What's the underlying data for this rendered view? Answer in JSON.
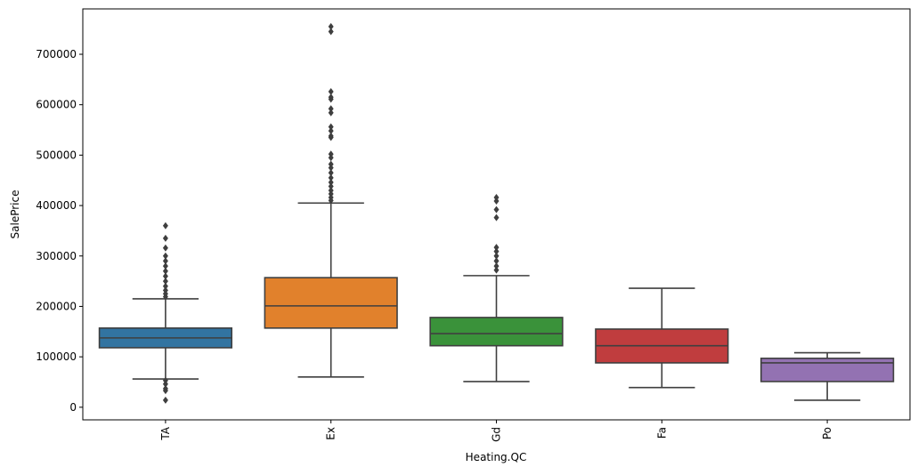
{
  "chart_data": {
    "type": "box",
    "title": "",
    "xlabel": "Heating.QC",
    "ylabel": "SalePrice",
    "ylim": [
      -25000,
      790000
    ],
    "yticks": [
      0,
      100000,
      200000,
      300000,
      400000,
      500000,
      600000,
      700000
    ],
    "ytick_labels": [
      "0",
      "100000",
      "200000",
      "300000",
      "400000",
      "500000",
      "600000",
      "700000"
    ],
    "categories": [
      "TA",
      "Ex",
      "Gd",
      "Fa",
      "Po"
    ],
    "grid": false,
    "line_color": "#3f3f3f",
    "boxes": [
      {
        "category": "TA",
        "color": "#3274a1",
        "whisker_low": 56000,
        "q1": 118000,
        "median": 137500,
        "q3": 157000,
        "whisker_high": 215000,
        "outliers": [
          360000,
          335000,
          316000,
          300000,
          290000,
          280000,
          270000,
          260000,
          250000,
          240000,
          232000,
          225000,
          219000,
          53000,
          46000,
          37000,
          33000,
          14000
        ]
      },
      {
        "category": "Ex",
        "color": "#e1812c",
        "whisker_low": 60000,
        "q1": 157000,
        "median": 201000,
        "q3": 257000,
        "whisker_high": 405000,
        "outliers": [
          755000,
          745000,
          626000,
          615000,
          611000,
          592000,
          584000,
          556000,
          548000,
          538000,
          535000,
          502000,
          495000,
          482000,
          475000,
          465000,
          455000,
          446000,
          438000,
          430000,
          423000,
          416000,
          410000
        ]
      },
      {
        "category": "Gd",
        "color": "#3a923a",
        "whisker_low": 51000,
        "q1": 122000,
        "median": 146000,
        "q3": 178000,
        "whisker_high": 261000,
        "outliers": [
          416000,
          409000,
          392000,
          376000,
          317000,
          309000,
          300000,
          290000,
          280000,
          272000
        ]
      },
      {
        "category": "Fa",
        "color": "#c03d3e",
        "whisker_low": 39000,
        "q1": 88000,
        "median": 122000,
        "q3": 155000,
        "whisker_high": 236000,
        "outliers": []
      },
      {
        "category": "Po",
        "color": "#9372b2",
        "whisker_low": 14000,
        "q1": 51000,
        "median": 88000,
        "q3": 97000,
        "whisker_high": 108000,
        "outliers": []
      }
    ]
  }
}
